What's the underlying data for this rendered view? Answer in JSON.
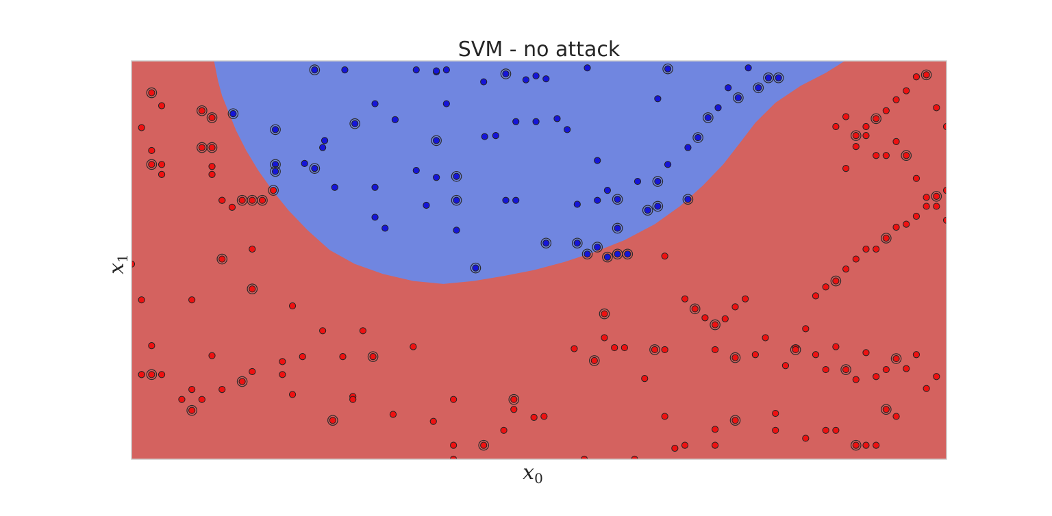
{
  "chart_data": {
    "type": "scatter",
    "title": "SVM - no attack",
    "xlabel": "x",
    "xlabel_sub": "0",
    "ylabel": "x",
    "ylabel_sub": "1",
    "xlim": [
      0,
      81
    ],
    "ylim": [
      0,
      40
    ],
    "grid": false,
    "legend": "none",
    "colors": {
      "negative_region": "#d4625f",
      "positive_region": "#7086e0",
      "negative_point": "#ee1111",
      "positive_point": "#1515d8",
      "frame": "#cccccc",
      "support_ring": "#2b2b2b"
    },
    "decision_boundary": [
      [
        8.2,
        40
      ],
      [
        8.6,
        38
      ],
      [
        9.0,
        36.5
      ],
      [
        9.6,
        35
      ],
      [
        10.4,
        33
      ],
      [
        11.4,
        31
      ],
      [
        12.6,
        29
      ],
      [
        14.0,
        27
      ],
      [
        15.6,
        25
      ],
      [
        17.5,
        23
      ],
      [
        19.7,
        21
      ],
      [
        22.2,
        19.6
      ],
      [
        25.0,
        18.6
      ],
      [
        28.0,
        17.9
      ],
      [
        31.0,
        17.6
      ],
      [
        34.0,
        17.9
      ],
      [
        37.0,
        18.4
      ],
      [
        40.0,
        19.0
      ],
      [
        43.0,
        19.8
      ],
      [
        46.0,
        20.8
      ],
      [
        49.0,
        22.0
      ],
      [
        52.0,
        23.6
      ],
      [
        54.5,
        25.4
      ],
      [
        56.8,
        27.5
      ],
      [
        58.8,
        29.6
      ],
      [
        60.5,
        31.8
      ],
      [
        62.0,
        33.8
      ],
      [
        64.0,
        35.8
      ],
      [
        66.5,
        37.5
      ],
      [
        69.0,
        38.8
      ],
      [
        70.9,
        40
      ]
    ],
    "series": [
      {
        "label": 1,
        "points": [
          [
            18.2,
            39.1
          ],
          [
            21.2,
            39.1
          ],
          [
            28.3,
            39.1
          ],
          [
            30.3,
            38.9
          ],
          [
            31.3,
            39.1
          ],
          [
            37.2,
            38.7
          ],
          [
            39.2,
            38.1
          ],
          [
            40.2,
            38.5
          ],
          [
            41.2,
            38.2
          ],
          [
            45.3,
            39.3
          ],
          [
            53.3,
            39.2
          ],
          [
            52.3,
            36.2
          ],
          [
            35.0,
            37.9
          ],
          [
            30.3,
            39.0
          ],
          [
            24.2,
            35.7
          ],
          [
            22.2,
            33.7
          ],
          [
            31.3,
            35.7
          ],
          [
            40.2,
            33.9
          ],
          [
            42.3,
            34.2
          ],
          [
            19.2,
            32.0
          ],
          [
            30.3,
            32.0
          ],
          [
            36.2,
            32.5
          ],
          [
            38.2,
            33.9
          ],
          [
            43.3,
            33.1
          ],
          [
            19.0,
            31.3
          ],
          [
            18.2,
            29.2
          ],
          [
            24.2,
            27.3
          ],
          [
            20.2,
            27.3
          ],
          [
            28.3,
            29.0
          ],
          [
            30.3,
            28.3
          ],
          [
            32.3,
            28.4
          ],
          [
            35.1,
            32.4
          ],
          [
            37.2,
            26.0
          ],
          [
            24.2,
            24.3
          ],
          [
            25.2,
            23.2
          ],
          [
            32.3,
            26.0
          ],
          [
            32.3,
            23.0
          ],
          [
            38.2,
            26.0
          ],
          [
            41.2,
            21.7
          ],
          [
            44.3,
            25.6
          ],
          [
            44.3,
            21.7
          ],
          [
            46.3,
            30.0
          ],
          [
            46.3,
            26.0
          ],
          [
            47.3,
            27.0
          ],
          [
            48.3,
            23.2
          ],
          [
            48.3,
            26.1
          ],
          [
            50.3,
            27.9
          ],
          [
            51.3,
            25.0
          ],
          [
            52.3,
            25.4
          ],
          [
            53.3,
            29.6
          ],
          [
            55.3,
            26.1
          ],
          [
            55.3,
            31.3
          ],
          [
            56.3,
            32.3
          ],
          [
            58.3,
            35.3
          ],
          [
            59.3,
            37.3
          ],
          [
            60.3,
            36.3
          ],
          [
            61.3,
            39.3
          ],
          [
            62.3,
            37.3
          ],
          [
            63.3,
            38.3
          ],
          [
            64.3,
            38.3
          ],
          [
            57.3,
            34.3
          ],
          [
            45.3,
            20.6
          ],
          [
            46.3,
            21.3
          ],
          [
            47.3,
            20.3
          ],
          [
            48.3,
            20.6
          ],
          [
            49.3,
            20.6
          ],
          [
            29.3,
            25.5
          ],
          [
            26.2,
            34.1
          ],
          [
            14.3,
            33.1
          ],
          [
            14.3,
            29.6
          ],
          [
            14.3,
            28.9
          ],
          [
            17.2,
            29.7
          ],
          [
            10.1,
            34.7
          ],
          [
            52.3,
            27.9
          ],
          [
            34.2,
            19.2
          ]
        ]
      },
      {
        "label": 0,
        "points": [
          [
            2.0,
            36.8
          ],
          [
            3.0,
            35.5
          ],
          [
            1.0,
            33.3
          ],
          [
            2.0,
            31.0
          ],
          [
            3.0,
            29.6
          ],
          [
            2.0,
            29.6
          ],
          [
            3.0,
            28.6
          ],
          [
            7.0,
            35.0
          ],
          [
            8.0,
            34.3
          ],
          [
            8.0,
            31.3
          ],
          [
            7.0,
            31.3
          ],
          [
            8.0,
            29.4
          ],
          [
            8.0,
            28.6
          ],
          [
            9.0,
            26.0
          ],
          [
            9.0,
            26.0
          ],
          [
            12.0,
            26.0
          ],
          [
            13.0,
            26.0
          ],
          [
            14.1,
            27.0
          ],
          [
            10.0,
            25.3
          ],
          [
            11.0,
            26.0
          ],
          [
            9.0,
            20.1
          ],
          [
            12.0,
            21.1
          ],
          [
            0.0,
            19.6
          ],
          [
            1.0,
            16.0
          ],
          [
            6.0,
            16.0
          ],
          [
            12.0,
            17.1
          ],
          [
            16.0,
            15.4
          ],
          [
            19.0,
            12.9
          ],
          [
            23.0,
            12.9
          ],
          [
            21.0,
            10.3
          ],
          [
            24.0,
            10.3
          ],
          [
            28.0,
            11.3
          ],
          [
            17.0,
            10.3
          ],
          [
            15.0,
            9.8
          ],
          [
            12.0,
            8.8
          ],
          [
            11.0,
            7.8
          ],
          [
            9.0,
            7.0
          ],
          [
            8.0,
            10.4
          ],
          [
            6.0,
            7.0
          ],
          [
            5.0,
            6.0
          ],
          [
            6.0,
            4.9
          ],
          [
            1.0,
            8.5
          ],
          [
            2.0,
            11.4
          ],
          [
            1.0,
            8.5
          ],
          [
            3.0,
            8.5
          ],
          [
            2.0,
            8.5
          ],
          [
            7.0,
            6.0
          ],
          [
            15.0,
            8.5
          ],
          [
            16.0,
            6.5
          ],
          [
            22.0,
            6.3
          ],
          [
            20.0,
            3.9
          ],
          [
            22.0,
            6.0
          ],
          [
            26.0,
            4.5
          ],
          [
            30.0,
            3.8
          ],
          [
            32.0,
            6.0
          ],
          [
            38.0,
            6.0
          ],
          [
            37.0,
            2.9
          ],
          [
            32.0,
            1.4
          ],
          [
            38.0,
            5.0
          ],
          [
            40.0,
            4.2
          ],
          [
            35.0,
            1.4
          ],
          [
            45.0,
            0.0
          ],
          [
            32.0,
            0.0
          ],
          [
            50.0,
            0.0
          ],
          [
            41.0,
            4.3
          ],
          [
            46.0,
            9.9
          ],
          [
            47.0,
            12.2
          ],
          [
            48.0,
            11.2
          ],
          [
            49.0,
            11.2
          ],
          [
            51.0,
            8.1
          ],
          [
            52.0,
            11.0
          ],
          [
            53.0,
            11.0
          ],
          [
            53.0,
            4.3
          ],
          [
            54.0,
            1.1
          ],
          [
            58.0,
            11.0
          ],
          [
            58.0,
            13.5
          ],
          [
            59.0,
            14.1
          ],
          [
            60.0,
            15.3
          ],
          [
            58.0,
            3.0
          ],
          [
            61.0,
            16.1
          ],
          [
            60.0,
            10.2
          ],
          [
            62.0,
            10.5
          ],
          [
            63.0,
            12.2
          ],
          [
            65.0,
            9.4
          ],
          [
            66.0,
            11.2
          ],
          [
            66.0,
            11.0
          ],
          [
            67.0,
            13.1
          ],
          [
            68.0,
            10.5
          ],
          [
            69.0,
            9.0
          ],
          [
            70.0,
            11.3
          ],
          [
            71.0,
            9.0
          ],
          [
            72.0,
            8.0
          ],
          [
            73.0,
            10.7
          ],
          [
            74.0,
            8.3
          ],
          [
            75.0,
            9.0
          ],
          [
            76.0,
            10.1
          ],
          [
            77.0,
            9.1
          ],
          [
            78.0,
            10.5
          ],
          [
            79.0,
            7.1
          ],
          [
            80.0,
            8.3
          ],
          [
            75.0,
            5.0
          ],
          [
            74.0,
            1.4
          ],
          [
            76.0,
            4.3
          ],
          [
            69.0,
            2.9
          ],
          [
            70.0,
            2.9
          ],
          [
            72.0,
            1.4
          ],
          [
            73.0,
            1.4
          ],
          [
            67.0,
            2.1
          ],
          [
            64.0,
            4.6
          ],
          [
            64.0,
            2.9
          ],
          [
            60.0,
            3.9
          ],
          [
            58.0,
            1.4
          ],
          [
            55.0,
            1.4
          ],
          [
            68.0,
            16.4
          ],
          [
            69.0,
            17.3
          ],
          [
            70.0,
            17.9
          ],
          [
            71.0,
            19.1
          ],
          [
            72.0,
            20.1
          ],
          [
            73.0,
            21.1
          ],
          [
            74.0,
            21.1
          ],
          [
            75.0,
            22.2
          ],
          [
            76.0,
            23.3
          ],
          [
            77.0,
            23.6
          ],
          [
            78.0,
            24.4
          ],
          [
            79.0,
            25.4
          ],
          [
            80.0,
            26.4
          ],
          [
            81.0,
            27.0
          ],
          [
            71.0,
            29.2
          ],
          [
            72.0,
            31.4
          ],
          [
            73.0,
            33.4
          ],
          [
            74.0,
            34.2
          ],
          [
            75.0,
            35.0
          ],
          [
            76.0,
            36.1
          ],
          [
            77.0,
            37.0
          ],
          [
            78.0,
            38.4
          ],
          [
            79.0,
            38.6
          ],
          [
            80.0,
            35.3
          ],
          [
            81.0,
            33.4
          ],
          [
            70.0,
            33.4
          ],
          [
            71.0,
            34.4
          ],
          [
            72.0,
            32.5
          ],
          [
            73.0,
            32.5
          ],
          [
            74.0,
            30.5
          ],
          [
            75.0,
            30.5
          ],
          [
            76.0,
            31.9
          ],
          [
            77.0,
            30.5
          ],
          [
            78.0,
            28.2
          ],
          [
            79.0,
            26.3
          ],
          [
            80.0,
            25.4
          ],
          [
            81.0,
            24.0
          ],
          [
            56.0,
            15.1
          ],
          [
            57.0,
            14.2
          ],
          [
            55.0,
            16.1
          ],
          [
            53.0,
            20.4
          ],
          [
            44.0,
            11.1
          ],
          [
            47.0,
            14.6
          ]
        ]
      }
    ]
  }
}
